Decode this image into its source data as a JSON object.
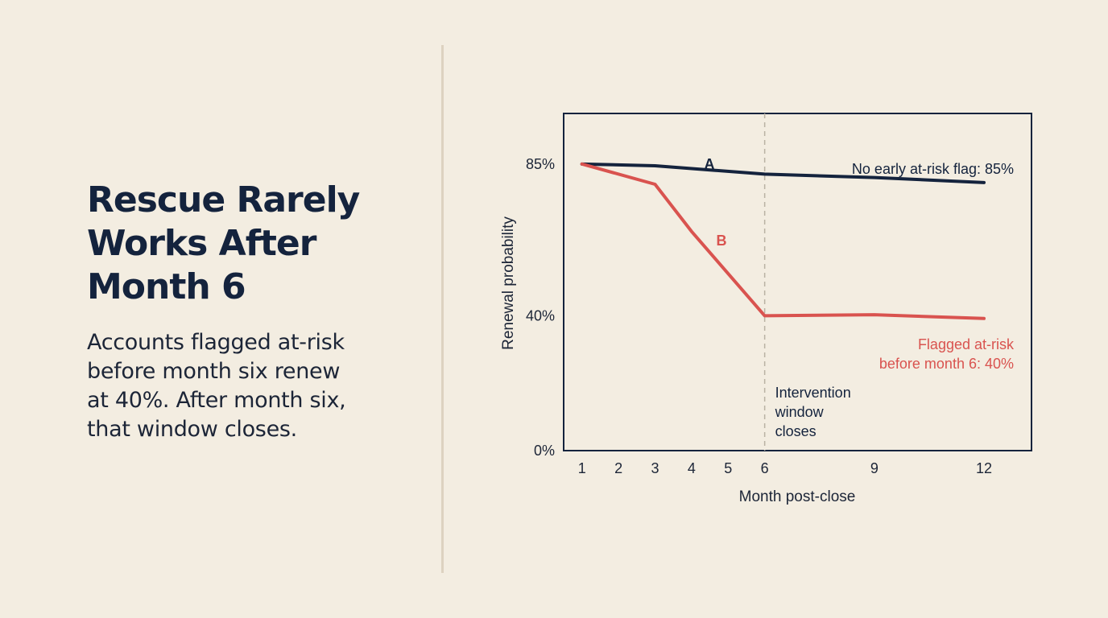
{
  "headline": {
    "lines": [
      "Rescue Rarely",
      "Works After",
      "Month 6"
    ]
  },
  "subtext": {
    "lines": [
      "Accounts flagged at-risk",
      "before month six renew",
      "at 40%. After month six,",
      "that window closes."
    ]
  },
  "colors": {
    "background": "#f3ede1",
    "navy": "#14233d",
    "red": "#d9534f",
    "divider": "#ddd2c0"
  },
  "chart_data": {
    "type": "line",
    "xlabel": "Month post-close",
    "ylabel": "Renewal probability",
    "xlim": [
      0.5,
      13.3
    ],
    "ylim": [
      0,
      100
    ],
    "x_ticks": [
      1,
      2,
      3,
      4,
      5,
      6,
      9,
      12
    ],
    "y_ticks": [
      {
        "value": 0,
        "label": "0%"
      },
      {
        "value": 40,
        "label": "40%"
      },
      {
        "value": 85,
        "label": "85%"
      }
    ],
    "grid": false,
    "series": [
      {
        "name": "A",
        "color": "#14233d",
        "x": [
          1,
          3,
          6,
          9,
          12
        ],
        "y": [
          85,
          84.5,
          82,
          81,
          79.5
        ]
      },
      {
        "name": "B",
        "color": "#d9534f",
        "x": [
          1,
          3,
          4,
          6,
          9,
          12
        ],
        "y": [
          85,
          79,
          65,
          40,
          40.3,
          39.2
        ]
      }
    ],
    "reference_lines": [
      {
        "x": 6,
        "style": "dashed",
        "label_lines": [
          "Intervention",
          "window",
          "closes"
        ]
      }
    ],
    "annotations": [
      {
        "series": "A",
        "text": "No early at-risk flag: 85%"
      },
      {
        "series": "B",
        "lines": [
          "Flagged at-risk",
          "before month 6: 40%"
        ]
      }
    ]
  }
}
